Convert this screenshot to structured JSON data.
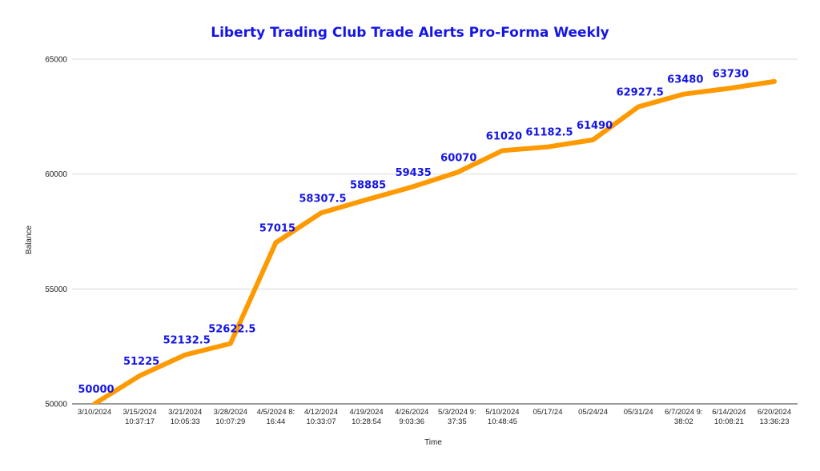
{
  "chart_data": {
    "type": "line",
    "title": "Liberty Trading Club Trade Alerts Pro-Forma  Weekly",
    "xlabel": "Time",
    "ylabel": "Balance",
    "ylim": [
      50000,
      65000
    ],
    "yticks": [
      "50000",
      "55000",
      "60000",
      "65000"
    ],
    "grid": true,
    "legend": "none",
    "categories": [
      [
        "3/10/2024"
      ],
      [
        "3/15/2024",
        "10:37:17"
      ],
      [
        "3/21/2024",
        "10:05:33"
      ],
      [
        "3/28/2024",
        "10:07:29"
      ],
      [
        "4/5/2024 8:",
        "16:44"
      ],
      [
        "4/12/2024",
        "10:33:07"
      ],
      [
        "4/19/2024",
        "10:28:54"
      ],
      [
        "4/26/2024",
        "9:03:36"
      ],
      [
        "5/3/2024 9:",
        "37:35"
      ],
      [
        "5/10/2024",
        "10:48:45"
      ],
      [
        "05/17/24"
      ],
      [
        "05/24/24"
      ],
      [
        "05/31/24"
      ],
      [
        "6/7/2024 9:",
        "38:02"
      ],
      [
        "6/14/2024",
        "10:08:21"
      ],
      [
        "6/20/2024",
        "13:36:23"
      ]
    ],
    "series": [
      {
        "values": [
          50000,
          51225,
          52132.5,
          52622.5,
          57015,
          58307.5,
          58885,
          59435,
          60070,
          61020,
          61182.5,
          61490,
          62927.5,
          63480,
          63730,
          64030
        ],
        "data_labels": [
          "50000",
          "51225",
          "52132.5",
          "52622.5",
          "57015",
          "58307.5",
          "58885",
          "59435",
          "60070",
          "61020",
          "61182.5",
          "61490",
          "62927.5",
          "63480",
          "63730",
          ""
        ],
        "color": "#ff9900"
      }
    ]
  }
}
